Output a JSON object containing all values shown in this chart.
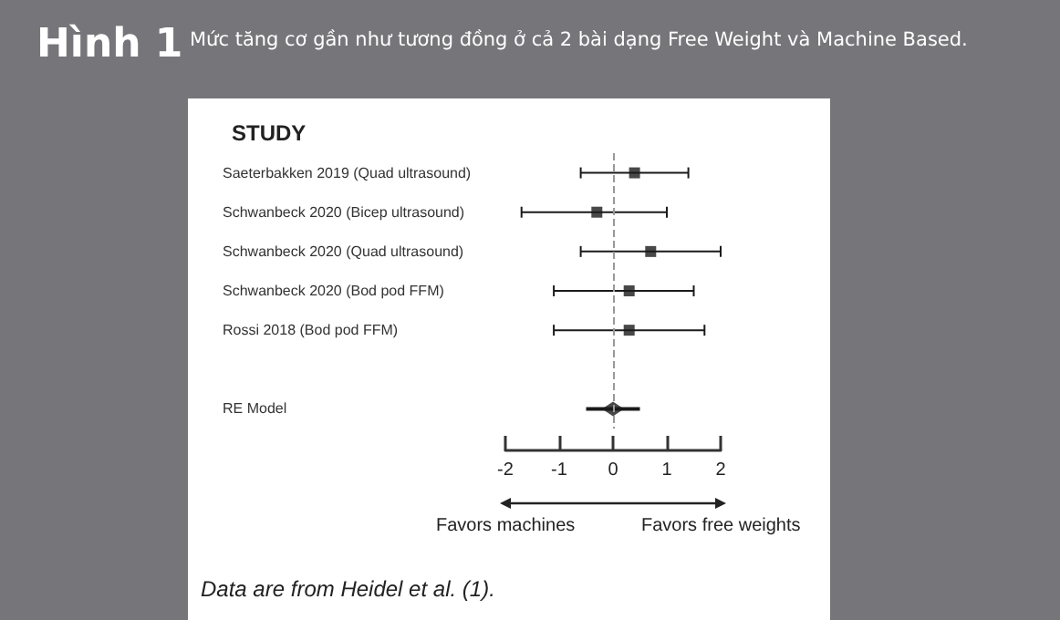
{
  "chart_data": {
    "type": "scatter",
    "orientation": "horizontal",
    "title": "Hình 1",
    "subtitle": "Mức tăng cơ gần như tương đồng ở cả 2 bài dạng Free Weight và Machine Based.",
    "ylabel": "STUDY",
    "categories": [
      "Saeterbakken 2019 (Quad ultrasound)",
      "Schwanbeck 2020 (Bicep ultrasound)",
      "Schwanbeck 2020 (Quad ultrasound)",
      "Schwanbeck 2020 (Bod pod FFM)",
      "Rossi 2018 (Bod pod FFM)",
      null,
      "RE Model"
    ],
    "series": [
      {
        "color": "#1a1a1a",
        "marker": "square",
        "values": [
          0.4,
          -0.3,
          0.7,
          0.3,
          0.3,
          null,
          null
        ],
        "errors": [
          [
            -0.6,
            1.4
          ],
          [
            -1.7,
            1.0
          ],
          [
            -0.6,
            2.0
          ],
          [
            -1.1,
            1.5
          ],
          [
            -1.1,
            1.7
          ],
          null,
          null
        ]
      },
      {
        "color": "#1a1a1a",
        "marker": "diamond",
        "values": [
          null,
          null,
          null,
          null,
          null,
          null,
          0.0
        ],
        "errors": [
          null,
          null,
          null,
          null,
          null,
          null,
          [
            -0.5,
            0.5
          ]
        ]
      }
    ],
    "xlim": [
      -2,
      2
    ],
    "xticks": [
      -2,
      -1,
      0,
      1,
      2
    ],
    "ref_lines": [
      {
        "axis": "x",
        "value": 0,
        "color": "#999999",
        "line_style": "dashed"
      }
    ],
    "annotations": [
      "Favors machines",
      "Favors free weights",
      "Data are from Heidel et al. (1)."
    ],
    "grid": false
  }
}
